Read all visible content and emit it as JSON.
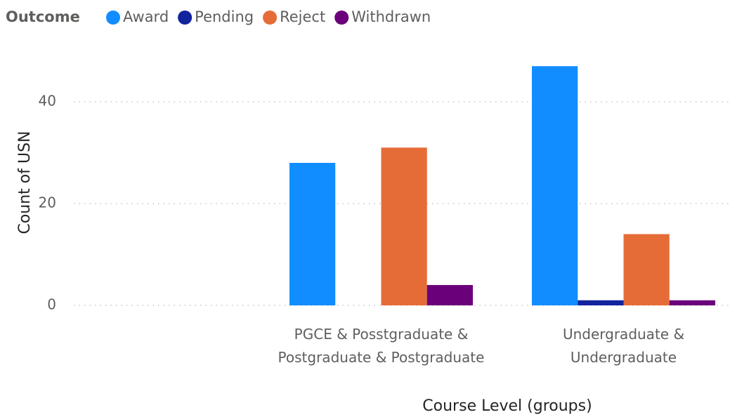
{
  "chart_data": {
    "type": "bar",
    "legend_title": "Outcome",
    "x_label": "Course Level (groups)",
    "y_label": "Count of USN",
    "categories": [
      null,
      "PGCE & Posstgraduate & Postgraduate & Postgraduate",
      "Undergraduate & Undergraduate"
    ],
    "series": [
      {
        "name": "Award",
        "color": "#118DFF",
        "values": [
          null,
          28,
          47
        ]
      },
      {
        "name": "Pending",
        "color": "#12239E",
        "values": [
          null,
          null,
          1
        ]
      },
      {
        "name": "Reject",
        "color": "#E66C37",
        "values": [
          null,
          31,
          14
        ]
      },
      {
        "name": "Withdrawn",
        "color": "#6B007B",
        "values": [
          null,
          4,
          1
        ]
      }
    ],
    "ylim": [
      0,
      48
    ],
    "yticks": [
      0,
      20,
      40
    ],
    "grid": true,
    "legend": "top-left"
  }
}
